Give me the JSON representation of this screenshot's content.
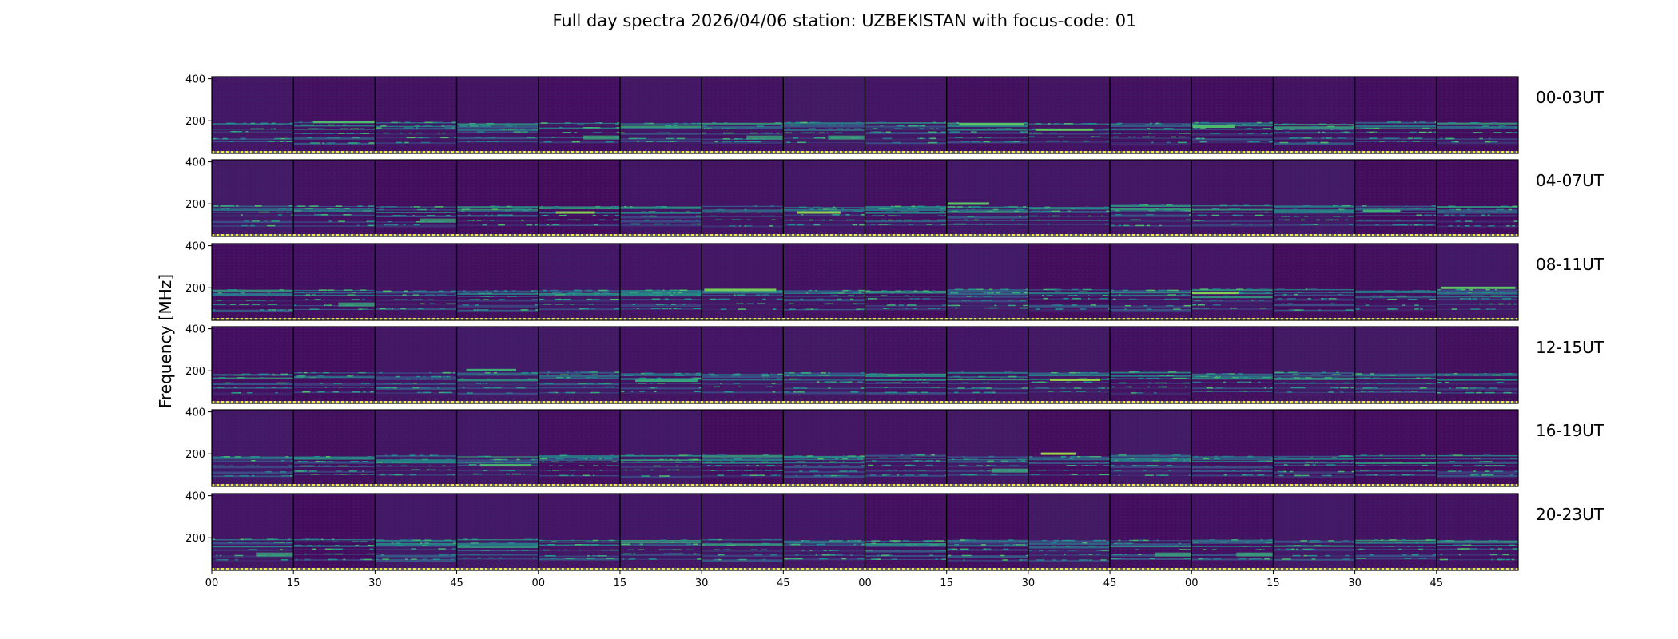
{
  "chart_data": {
    "type": "heatmap",
    "title": "Full day spectra 2026/04/06 station: UZBEKISTAN with focus-code: 01",
    "ylabel": "Frequency [MHz]",
    "xlabel": "",
    "ylim": [
      45,
      410
    ],
    "y_ticks": [
      "200",
      "400"
    ],
    "x_ticks": [
      "00",
      "15",
      "30",
      "45",
      "00",
      "15",
      "30",
      "45",
      "00",
      "15",
      "30",
      "45",
      "00",
      "15",
      "30",
      "45"
    ],
    "rows": [
      "00-03UT",
      "04-07UT",
      "08-11UT",
      "12-15UT",
      "16-19UT",
      "20-23UT"
    ],
    "panels_per_row": 16,
    "minutes_per_panel": 15,
    "colormap": [
      "#440154",
      "#3b528b",
      "#21918c",
      "#5ec962",
      "#fde725"
    ],
    "flag_line_colors": [
      "#fde725",
      "#666666"
    ]
  }
}
